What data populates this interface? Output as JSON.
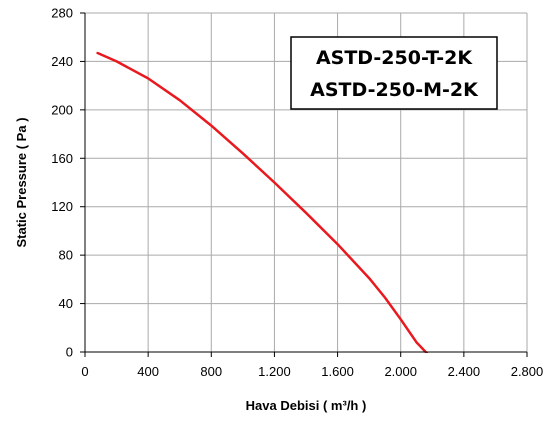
{
  "chart_data": {
    "type": "line",
    "title": "",
    "xlabel": "Hava Debisi ( m³/h )",
    "ylabel": "Static Pressure ( Pa )",
    "xlim": [
      0,
      2800
    ],
    "ylim": [
      0,
      280
    ],
    "x_ticks": [
      0,
      400,
      800,
      1200,
      1600,
      2000,
      2400,
      2800
    ],
    "x_tick_labels": [
      "0",
      "400",
      "800",
      "1.200",
      "1.600",
      "2.000",
      "2.400",
      "2.800"
    ],
    "y_ticks": [
      0,
      40,
      80,
      120,
      160,
      200,
      240,
      280
    ],
    "y_tick_labels": [
      "0",
      "40",
      "80",
      "120",
      "160",
      "200",
      "240",
      "280"
    ],
    "grid": true,
    "legend_lines": [
      "ASTD-250-T-2K",
      "ASTD-250-M-2K"
    ],
    "legend_position": "top-right",
    "series": [
      {
        "color": "#e8191f",
        "x": [
          80,
          200,
          400,
          600,
          800,
          1000,
          1200,
          1400,
          1600,
          1800,
          1900,
          2000,
          2100,
          2180
        ],
        "y": [
          247,
          240,
          226,
          208,
          187,
          164,
          140,
          115,
          89,
          61,
          45,
          27,
          8,
          -3
        ]
      }
    ],
    "colors": {
      "grid": "#aaaaaa",
      "axis": "#000000",
      "legend_border": "#000000",
      "legend_fill": "#ffffff",
      "background": "#ffffff"
    }
  }
}
